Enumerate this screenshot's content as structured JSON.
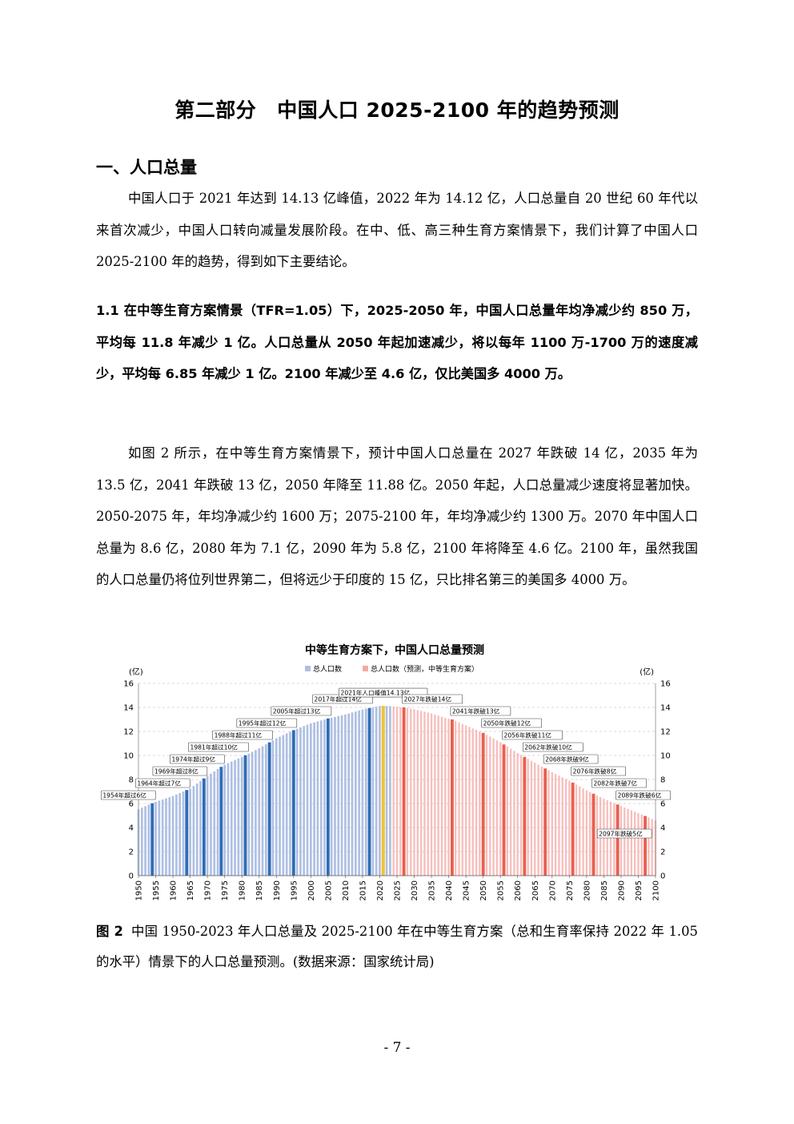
{
  "doc": {
    "title_part": "第二部分",
    "title_main": "中国人口 2025-2100 年的趋势预测",
    "section_heading": "一、人口总量",
    "para1": "中国人口于 2021 年达到 14.13 亿峰值，2022 年为 14.12 亿，人口总量自 20 世纪 60 年代以来首次减少，中国人口转向减量发展阶段。在中、低、高三种生育方案情景下，我们计算了中国人口 2025-2100 年的趋势，得到如下主要结论。",
    "para2": "1.1 在中等生育方案情景（TFR=1.05）下，2025-2050 年，中国人口总量年均净减少约 850 万，平均每 11.8 年减少 1 亿。人口总量从 2050 年起加速减少，将以每年 1100 万-1700 万的速度减少，平均每 6.85 年减少 1 亿。2100 年减少至 4.6 亿，仅比美国多 4000 万。",
    "para3": "如图 2 所示，在中等生育方案情景下，预计中国人口总量在 2027 年跌破 14 亿，2035 年为 13.5 亿，2041 年跌破 13 亿，2050 年降至 11.88 亿。2050 年起，人口总量减少速度将显著加快。2050-2075 年，年均净减少约 1600 万；2075-2100 年，年均净减少约 1300 万。2070 年中国人口总量为 8.6 亿，2080 年为 7.1 亿，2090 年为 5.8 亿，2100 年将降至 4.6 亿。2100 年，虽然我国的人口总量仍将位列世界第二，但将远少于印度的 15 亿，只比排名第三的美国多 4000 万。",
    "caption_label": "图 2",
    "caption_text": "中国 1950-2023 年人口总量及 2025-2100 年在中等生育方案（总和生育率保持 2022 年 1.05 的水平）情景下的人口总量预测。(数据来源：国家统计局)",
    "page_number": "- 7 -"
  },
  "chart_data": {
    "type": "bar",
    "title": "中等生育方案下，中国人口总量预测",
    "ylabel_left": "(亿)",
    "ylabel_right": "(亿)",
    "ylim": [
      0,
      16
    ],
    "yticks": [
      0,
      2,
      4,
      6,
      8,
      10,
      12,
      14,
      16
    ],
    "xlim": [
      1950,
      2100
    ],
    "xticks": [
      1950,
      1955,
      1960,
      1965,
      1970,
      1975,
      1980,
      1985,
      1990,
      1995,
      2000,
      2005,
      2010,
      2015,
      2020,
      2025,
      2030,
      2035,
      2040,
      2045,
      2050,
      2055,
      2060,
      2065,
      2070,
      2075,
      2080,
      2085,
      2090,
      2095,
      2100
    ],
    "grid": "horizontal dashed",
    "legend_position": "top",
    "series": [
      {
        "name": "总人口数",
        "color": "#aebfe3",
        "x": [
          1950,
          1955,
          1960,
          1965,
          1970,
          1975,
          1980,
          1985,
          1990,
          1995,
          2000,
          2005,
          2010,
          2015,
          2020,
          2021,
          2022,
          2023
        ],
        "values": [
          5.52,
          6.15,
          6.62,
          7.25,
          8.3,
          9.24,
          9.87,
          10.59,
          11.43,
          12.11,
          12.67,
          13.08,
          13.41,
          13.83,
          14.12,
          14.13,
          14.12,
          14.1
        ]
      },
      {
        "name": "总人口数（预测，中等生育方案）",
        "color": "#f4a9a5",
        "x": [
          2024,
          2027,
          2030,
          2035,
          2040,
          2041,
          2045,
          2050,
          2055,
          2060,
          2065,
          2070,
          2075,
          2080,
          2085,
          2090,
          2095,
          2100
        ],
        "values": [
          14.08,
          14.0,
          13.85,
          13.5,
          13.05,
          13.0,
          12.5,
          11.88,
          11.1,
          10.2,
          9.4,
          8.6,
          7.9,
          7.1,
          6.4,
          5.8,
          5.2,
          4.6
        ]
      }
    ],
    "highlight_years": {
      "blue": [
        1954,
        1964,
        1969,
        1974,
        1981,
        1988,
        1995,
        2005,
        2017
      ],
      "peak": [
        2021
      ],
      "red": [
        2027,
        2041,
        2050,
        2056,
        2062,
        2068,
        2076,
        2082,
        2089,
        2097
      ]
    },
    "annotations": [
      {
        "year": 1954,
        "value": 6,
        "text": "1954年超过6亿"
      },
      {
        "year": 1964,
        "value": 7,
        "text": "1964年超过7亿"
      },
      {
        "year": 1969,
        "value": 8,
        "text": "1969年超过8亿"
      },
      {
        "year": 1974,
        "value": 9,
        "text": "1974年超过9亿"
      },
      {
        "year": 1981,
        "value": 10,
        "text": "1981年超过10亿"
      },
      {
        "year": 1988,
        "value": 11,
        "text": "1988年超过11亿"
      },
      {
        "year": 1995,
        "value": 12,
        "text": "1995年超过12亿"
      },
      {
        "year": 2005,
        "value": 13,
        "text": "2005年超过13亿"
      },
      {
        "year": 2017,
        "value": 14,
        "text": "2017年超过14亿"
      },
      {
        "year": 2021,
        "value": 14.13,
        "text": "2021年人口峰值14.13亿"
      },
      {
        "year": 2027,
        "value": 14,
        "text": "2027年跌破14亿"
      },
      {
        "year": 2041,
        "value": 13,
        "text": "2041年跌破13亿"
      },
      {
        "year": 2050,
        "value": 12,
        "text": "2050年跌破12亿"
      },
      {
        "year": 2056,
        "value": 11,
        "text": "2056年跌破11亿"
      },
      {
        "year": 2062,
        "value": 10,
        "text": "2062年跌破10亿"
      },
      {
        "year": 2068,
        "value": 9,
        "text": "2068年跌破9亿"
      },
      {
        "year": 2076,
        "value": 8,
        "text": "2076年跌破8亿"
      },
      {
        "year": 2082,
        "value": 7,
        "text": "2082年跌破7亿"
      },
      {
        "year": 2089,
        "value": 6,
        "text": "2089年跌破6亿"
      },
      {
        "year": 2097,
        "value": 5,
        "text": "2097年跌破5亿"
      }
    ]
  }
}
